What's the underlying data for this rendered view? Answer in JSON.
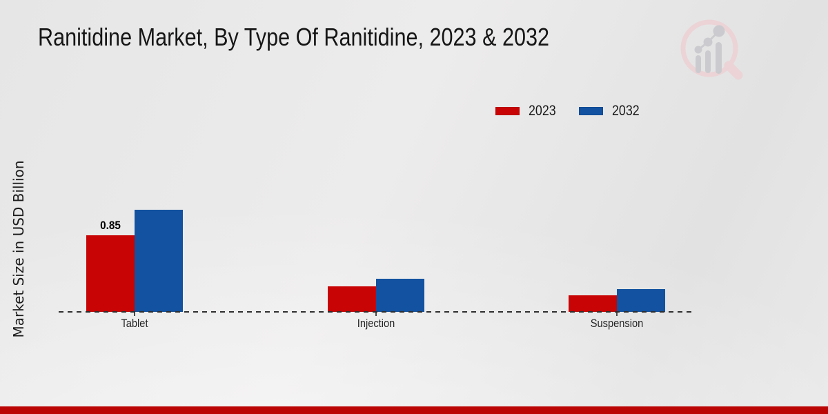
{
  "chart_data": {
    "type": "bar",
    "title": "Ranitidine Market, By Type Of Ranitidine, 2023 & 2032",
    "xlabel": "",
    "ylabel": "Market Size in USD Billion",
    "categories": [
      "Tablet",
      "Injection",
      "Suspension"
    ],
    "series": [
      {
        "name": "2023",
        "color": "#c80404",
        "values": [
          0.85,
          0.28,
          0.18
        ]
      },
      {
        "name": "2032",
        "color": "#1252a0",
        "values": [
          1.13,
          0.37,
          0.25
        ]
      }
    ],
    "data_labels": [
      {
        "series": "2023",
        "category": "Tablet",
        "text": "0.85"
      }
    ],
    "ylim": [
      0,
      1.25
    ],
    "grid": false,
    "y_axis_ticks_visible": false,
    "baseline_style": "dashed",
    "legend_position": "top-right"
  },
  "branding": {
    "logo_icon": "magnifier-bar-chart-watermark",
    "footer_bar_color": "#bb0404"
  }
}
